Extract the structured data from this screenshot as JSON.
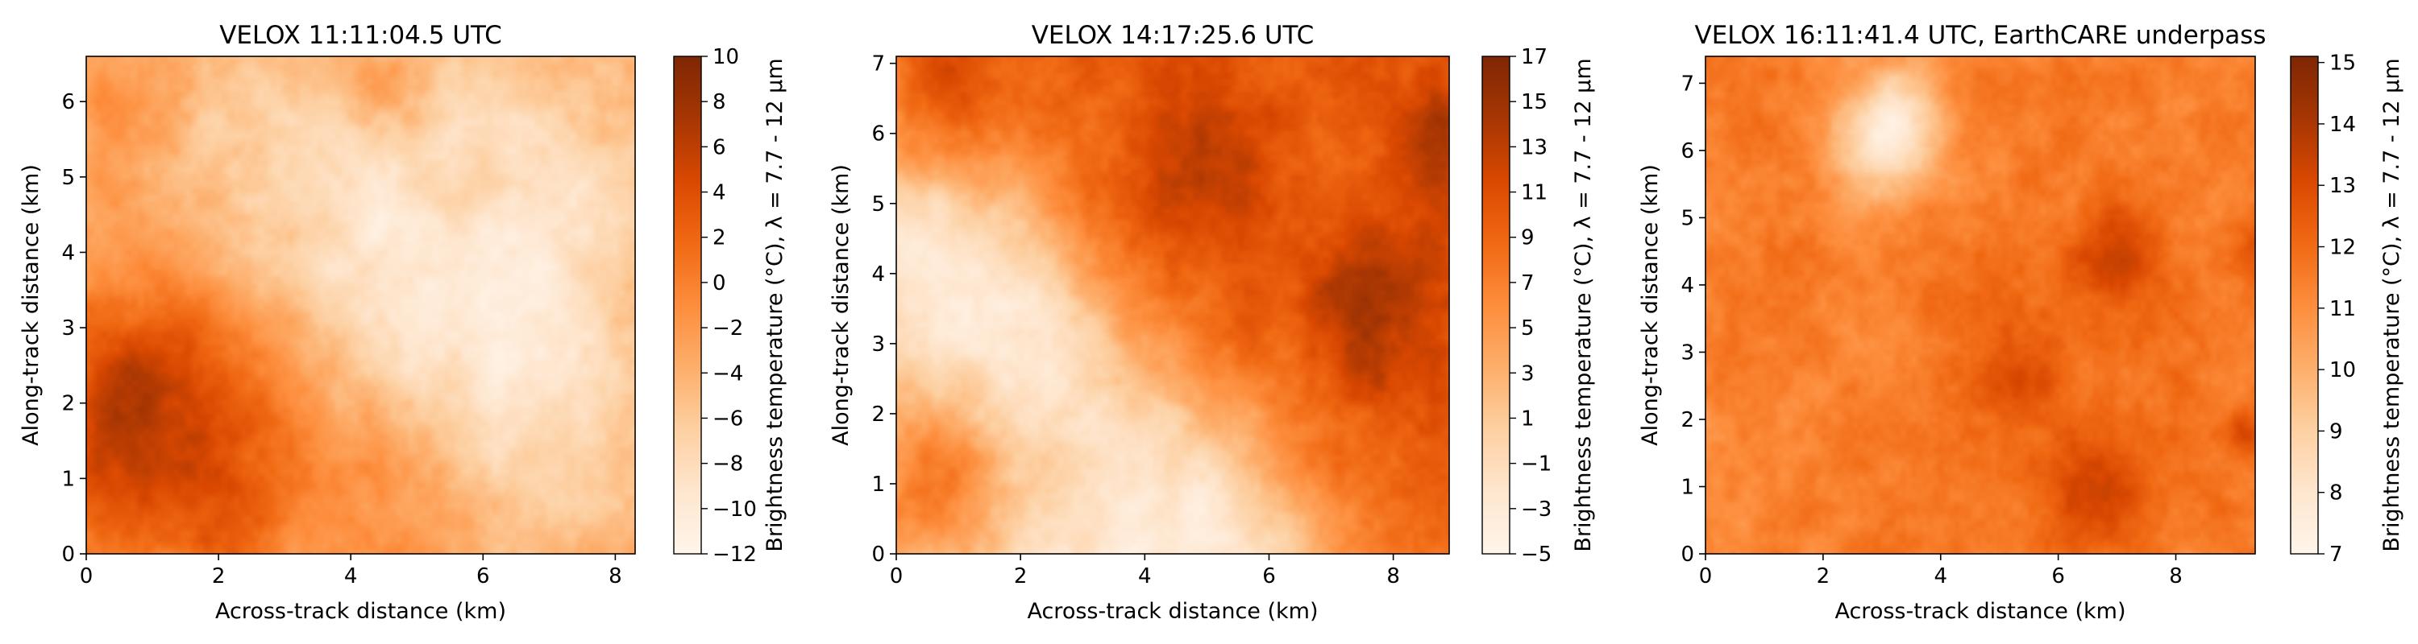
{
  "chart_data": [
    {
      "type": "heatmap",
      "title": "VELOX 11:11:04.5 UTC",
      "xlabel": "Across-track distance (km)",
      "ylabel": "Along-track distance (km)",
      "xlim": [
        0,
        8.3
      ],
      "ylim": [
        0,
        6.6
      ],
      "xticks": [
        0,
        2,
        4,
        6,
        8
      ],
      "yticks": [
        0,
        1,
        2,
        3,
        4,
        5,
        6
      ],
      "colorbar": {
        "label": "Brightness temperature (°C), λ = 7.7 - 12 µm",
        "range": [
          -12,
          10
        ],
        "ticks": [
          -12,
          -10,
          -8,
          -6,
          -4,
          -2,
          0,
          2,
          4,
          6,
          8,
          10
        ],
        "colormap": "Oranges"
      },
      "field": {
        "base": -3.0,
        "features": [
          {
            "x": 0.7,
            "y": 1.4,
            "amp": 7,
            "r": 1.2
          },
          {
            "x": 1.0,
            "y": 2.5,
            "amp": 4,
            "r": 0.9
          },
          {
            "x": 3.0,
            "y": 2.2,
            "amp": 3,
            "r": 0.8
          },
          {
            "x": 2.3,
            "y": 0.6,
            "amp": 4,
            "r": 0.8
          },
          {
            "x": 4.5,
            "y": 0.8,
            "amp": 3,
            "r": 0.7
          },
          {
            "x": 5.0,
            "y": 3.5,
            "amp": -5,
            "r": 1.6
          },
          {
            "x": 7.0,
            "y": 2.0,
            "amp": -4,
            "r": 1.3
          },
          {
            "x": 6.8,
            "y": 5.0,
            "amp": -4,
            "r": 1.4
          },
          {
            "x": 3.0,
            "y": 5.5,
            "amp": -3,
            "r": 1.4
          },
          {
            "x": 5.7,
            "y": 4.8,
            "amp": 3,
            "r": 0.4
          },
          {
            "x": 4.4,
            "y": 6.2,
            "amp": 3,
            "r": 0.5
          },
          {
            "x": 0.3,
            "y": 6.0,
            "amp": 3,
            "r": 0.4
          }
        ]
      }
    },
    {
      "type": "heatmap",
      "title": "VELOX 14:17:25.6 UTC",
      "xlabel": "Across-track distance (km)",
      "ylabel": "Along-track distance (km)",
      "xlim": [
        0,
        8.9
      ],
      "ylim": [
        0,
        7.1
      ],
      "xticks": [
        0,
        2,
        4,
        6,
        8
      ],
      "yticks": [
        0,
        1,
        2,
        3,
        4,
        5,
        6,
        7
      ],
      "colorbar": {
        "label": "Brightness temperature (°C), λ = 7.7 - 12 µm",
        "range": [
          -5,
          17
        ],
        "ticks": [
          -5,
          -3,
          -1,
          1,
          3,
          5,
          7,
          9,
          11,
          13,
          15,
          17
        ],
        "colormap": "Oranges"
      },
      "field": {
        "base": 4.0,
        "gradient": {
          "ax": 1.3,
          "ay": 1.3,
          "offset": -9.0
        },
        "features": [
          {
            "x": 7.8,
            "y": 3.4,
            "amp": 4,
            "r": 0.9
          },
          {
            "x": 8.8,
            "y": 5.8,
            "amp": 4,
            "r": 0.5
          },
          {
            "x": 4.7,
            "y": 5.5,
            "amp": 3,
            "r": 0.8
          },
          {
            "x": 0.5,
            "y": 1.1,
            "amp": 9,
            "r": 1.1
          },
          {
            "x": 0.4,
            "y": 6.5,
            "amp": 6,
            "r": 0.8
          },
          {
            "x": 1.5,
            "y": 3.5,
            "amp": -3,
            "r": 1.2
          },
          {
            "x": 5.0,
            "y": 0.6,
            "amp": -3,
            "r": 1.2
          }
        ]
      }
    },
    {
      "type": "heatmap",
      "title": "VELOX 16:11:41.4 UTC, EarthCARE underpass",
      "xlabel": "Across-track distance (km)",
      "ylabel": "Along-track distance (km)",
      "xlim": [
        0,
        9.35
      ],
      "ylim": [
        0,
        7.4
      ],
      "xticks": [
        0,
        2,
        4,
        6,
        8
      ],
      "yticks": [
        0,
        1,
        2,
        3,
        4,
        5,
        6,
        7
      ],
      "colorbar": {
        "label": "Brightness temperature (°C), λ = 7.7 - 12 µm",
        "range": [
          7,
          15.1
        ],
        "ticks": [
          7,
          8,
          9,
          10,
          11,
          12,
          13,
          14,
          15
        ],
        "colormap": "Oranges"
      },
      "field": {
        "base": 11.6,
        "features": [
          {
            "x": 2.9,
            "y": 6.1,
            "amp": -3.2,
            "r": 0.7
          },
          {
            "x": 3.5,
            "y": 6.7,
            "amp": -1.5,
            "r": 0.5
          },
          {
            "x": 5.4,
            "y": 2.8,
            "amp": 1.3,
            "r": 0.6
          },
          {
            "x": 6.6,
            "y": 1.0,
            "amp": 1.8,
            "r": 0.6
          },
          {
            "x": 7.0,
            "y": 4.4,
            "amp": 1.4,
            "r": 0.6
          },
          {
            "x": 9.2,
            "y": 1.8,
            "amp": 1.5,
            "r": 0.3
          },
          {
            "x": 9.3,
            "y": 4.5,
            "amp": 1.2,
            "r": 0.3
          },
          {
            "x": 1.0,
            "y": 2.0,
            "amp": -0.4,
            "r": 1.5
          }
        ]
      }
    }
  ]
}
